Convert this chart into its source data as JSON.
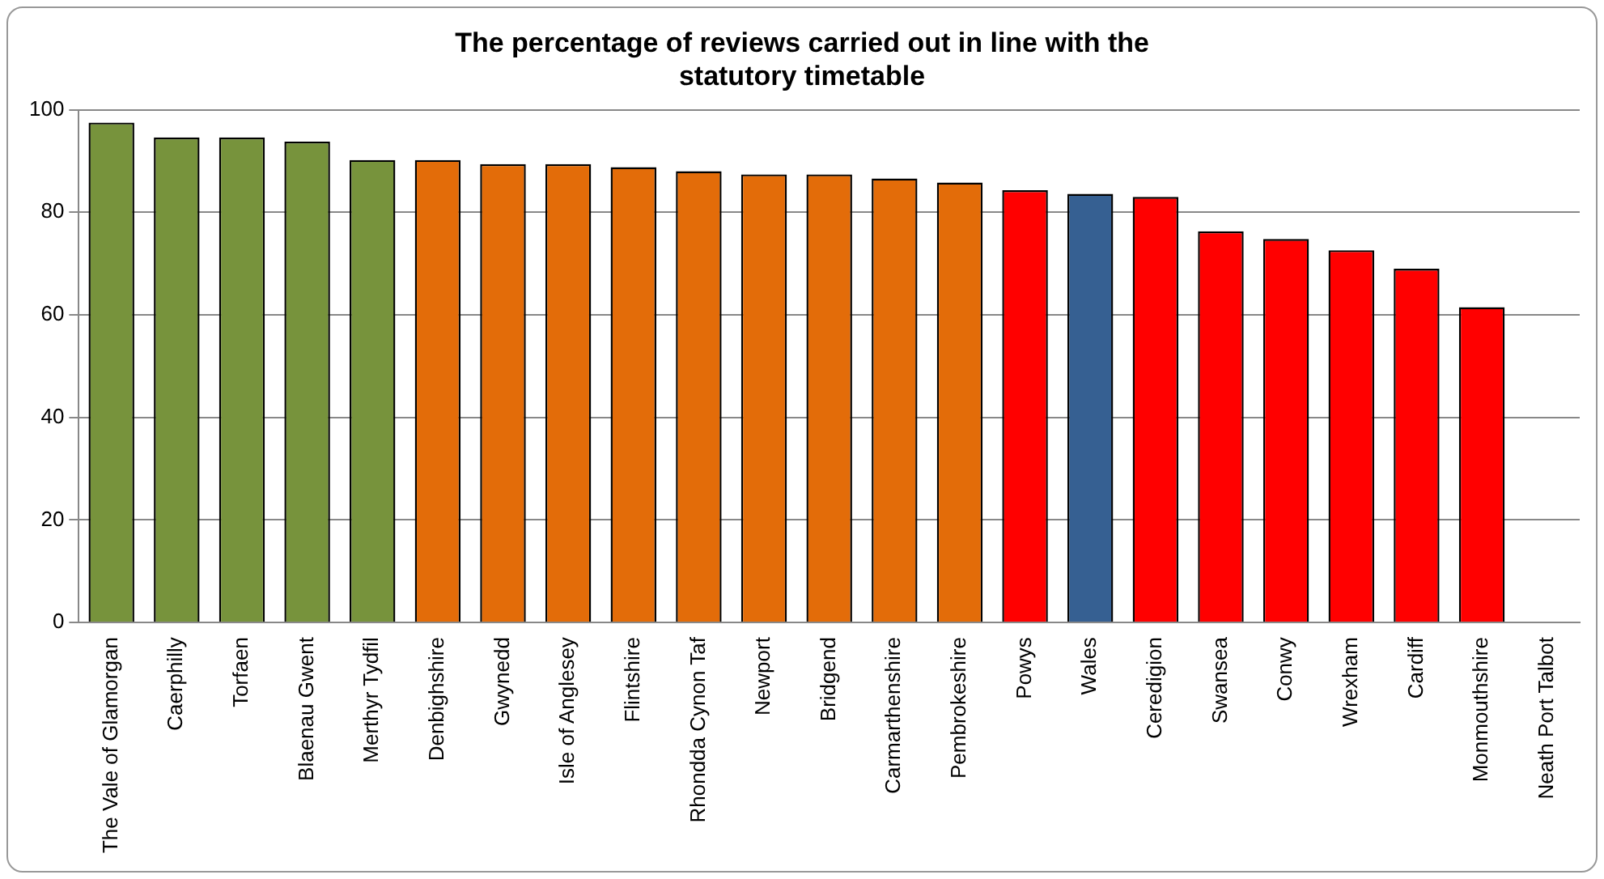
{
  "chart_data": {
    "type": "bar",
    "title": "The percentage of reviews carried out in line with the statutory timetable",
    "categories": [
      "The Vale of Glamorgan",
      "Caerphilly",
      "Torfaen",
      "Blaenau Gwent",
      "Merthyr Tydfil",
      "Denbighshire",
      "Gwynedd",
      "Isle of Anglesey",
      "Flintshire",
      "Rhondda Cynon Taf",
      "Newport",
      "Bridgend",
      "Carmarthenshire",
      "Pembrokeshire",
      "Powys",
      "Wales",
      "Ceredigion",
      "Swansea",
      "Conwy",
      "Wrexham",
      "Cardiff",
      "Monmouthshire",
      "Neath Port Talbot"
    ],
    "values": [
      97.5,
      94.6,
      94.6,
      93.8,
      90.2,
      90.2,
      89.4,
      89.4,
      88.8,
      88,
      87.4,
      87.4,
      86.6,
      85.8,
      84.3,
      83.6,
      83,
      76.3,
      74.8,
      72.6,
      69,
      61.5,
      null
    ],
    "colors": [
      "#77933c",
      "#77933c",
      "#77933c",
      "#77933c",
      "#77933c",
      "#e36c09",
      "#e36c09",
      "#e36c09",
      "#e36c09",
      "#e36c09",
      "#e36c09",
      "#e36c09",
      "#e36c09",
      "#e36c09",
      "#ff0000",
      "#366092",
      "#ff0000",
      "#ff0000",
      "#ff0000",
      "#ff0000",
      "#ff0000",
      "#ff0000",
      "#ff0000"
    ],
    "ylim": [
      0,
      100
    ],
    "yticks": [
      0,
      20,
      40,
      60,
      80,
      100
    ],
    "grid": "y",
    "legend": false
  }
}
